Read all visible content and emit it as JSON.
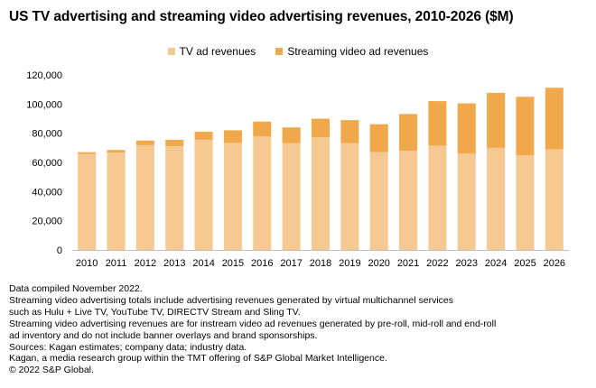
{
  "chart_data": {
    "type": "bar",
    "stacked": true,
    "title": "US TV advertising and streaming video advertising revenues, 2010-2026 ($M)",
    "categories": [
      "2010",
      "2011",
      "2012",
      "2013",
      "2014",
      "2015",
      "2016",
      "2017",
      "2018",
      "2019",
      "2020",
      "2021",
      "2022",
      "2023",
      "2024",
      "2025",
      "2026"
    ],
    "series": [
      {
        "name": "TV ad revenues",
        "color": "#F6C993",
        "values": [
          65800,
          66700,
          71800,
          71200,
          75500,
          73400,
          77800,
          73300,
          77300,
          73300,
          67000,
          68000,
          71500,
          66000,
          70000,
          65000,
          69000
        ]
      },
      {
        "name": "Streaming video ad revenues",
        "color": "#F0A84A",
        "values": [
          1200,
          1800,
          3200,
          4300,
          5500,
          8600,
          10200,
          10700,
          12700,
          15700,
          19200,
          25200,
          30500,
          34500,
          37700,
          40000,
          42200
        ]
      }
    ],
    "xlabel": "",
    "ylabel": "",
    "ylim": [
      0,
      120000
    ],
    "yticks": [
      0,
      20000,
      40000,
      60000,
      80000,
      100000,
      120000
    ],
    "ytick_labels": [
      "0",
      "20,000",
      "40,000",
      "60,000",
      "80,000",
      "100,000",
      "120,000"
    ],
    "legend_position": "top-center",
    "grid": false
  },
  "notes": [
    "Data compiled November 2022.",
    "Streaming video advertising totals include advertising revenues generated by virtual multichannel services",
    "such as Hulu + Live TV, YouTube TV, DIRECTV Stream and Sling TV.",
    "Streaming video advertising revenues are for instream video ad revenues generated by pre-roll, mid-roll and end-roll",
    "ad inventory and do not include banner overlays and brand sponsorships.",
    "Sources: Kagan estimates; company data; industry data.",
    "Kagan, a media research group within the TMT offering of S&P Global Market Intelligence.",
    "© 2022 S&P Global."
  ]
}
